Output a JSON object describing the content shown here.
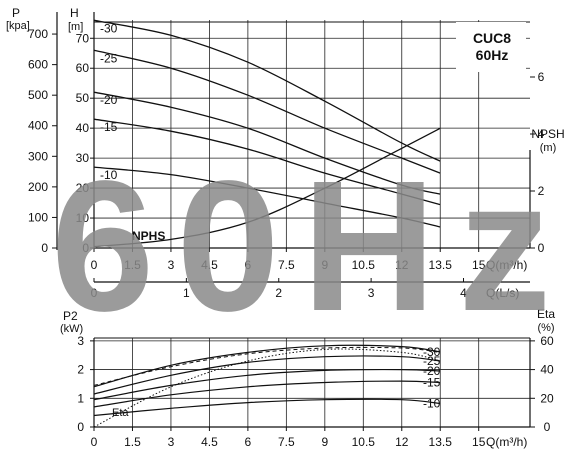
{
  "watermark": "60Hz",
  "model_title": "CUC8",
  "model_freq": "60Hz",
  "chart_data": [
    {
      "type": "line",
      "name": "head-curves",
      "left_axes": [
        {
          "label": "P",
          "unit": "[kpa]",
          "ticks": [
            0,
            100,
            200,
            300,
            400,
            500,
            600,
            700
          ],
          "range": [
            0,
            746
          ]
        },
        {
          "label": "H",
          "unit": "[m]",
          "ticks": [
            0,
            10,
            20,
            30,
            40,
            50,
            60,
            70
          ],
          "range": [
            0,
            76.1
          ]
        }
      ],
      "right_axis": {
        "label": "NPSH",
        "unit": "(m)",
        "ticks": [
          0,
          2,
          4,
          6
        ],
        "range": [
          0,
          8
        ]
      },
      "x_axis_q": {
        "label": "Q(m³/h)",
        "ticks": [
          0,
          1.5,
          3,
          4.5,
          6,
          7.5,
          9,
          10.5,
          12,
          13.5,
          15
        ],
        "range": [
          0,
          17
        ]
      },
      "x_axis_ls": {
        "label": "Q(L/s)",
        "ticks": [
          0,
          1,
          2,
          3,
          4
        ],
        "range": [
          0,
          4.72
        ]
      },
      "series": [
        {
          "name": "-30",
          "x": [
            0,
            3,
            6,
            9,
            12,
            13.5
          ],
          "y": [
            76,
            71,
            62,
            49,
            35,
            29
          ]
        },
        {
          "name": "-25",
          "x": [
            0,
            3,
            6,
            9,
            12,
            13.5
          ],
          "y": [
            66,
            60,
            51,
            40,
            30,
            25
          ]
        },
        {
          "name": "-20",
          "x": [
            0,
            3,
            6,
            9,
            12,
            13.5
          ],
          "y": [
            52,
            47,
            40,
            30,
            21,
            18
          ]
        },
        {
          "name": "-15",
          "x": [
            0,
            3,
            6,
            9,
            12,
            13.5
          ],
          "y": [
            43,
            39,
            33,
            25,
            18,
            14.5
          ]
        },
        {
          "name": "-10",
          "x": [
            0,
            3,
            6,
            9,
            12,
            13.5
          ],
          "y": [
            27,
            24.5,
            20,
            15,
            10,
            7
          ]
        }
      ],
      "npsh": {
        "name": "NPHS",
        "x": [
          0,
          3,
          6,
          9,
          12,
          13.5
        ],
        "y": [
          0.05,
          0.3,
          0.9,
          2.1,
          3.5,
          4.2
        ]
      }
    },
    {
      "type": "line",
      "name": "power-curves",
      "left_axis": {
        "label": "P2",
        "unit": "(kW)",
        "ticks": [
          0,
          1,
          2,
          3
        ],
        "range": [
          0,
          3.1
        ]
      },
      "right_axis": {
        "label": "Eta",
        "unit": "(%)",
        "ticks": [
          0,
          20,
          40,
          60
        ],
        "range": [
          0,
          62
        ]
      },
      "x_axis": {
        "label": "Q(m³/h)",
        "ticks": [
          0,
          1.5,
          3,
          4.5,
          6,
          7.5,
          9,
          10.5,
          12,
          13.5,
          15
        ],
        "range": [
          0,
          17
        ]
      },
      "series": [
        {
          "name": "-30",
          "x": [
            0,
            3,
            6,
            9,
            12,
            13.5
          ],
          "y": [
            1.4,
            2.15,
            2.6,
            2.83,
            2.8,
            2.62
          ]
        },
        {
          "name": "-25",
          "x": [
            0,
            3,
            6,
            9,
            12,
            13.5
          ],
          "y": [
            1.15,
            1.8,
            2.25,
            2.45,
            2.45,
            2.3
          ]
        },
        {
          "name": "-20",
          "x": [
            0,
            3,
            6,
            9,
            12,
            13.5
          ],
          "y": [
            0.95,
            1.45,
            1.8,
            1.97,
            2.0,
            1.95
          ]
        },
        {
          "name": "-15",
          "x": [
            0,
            3,
            6,
            9,
            12,
            13.5
          ],
          "y": [
            0.7,
            1.12,
            1.4,
            1.55,
            1.6,
            1.55
          ]
        },
        {
          "name": "-10",
          "x": [
            0,
            3,
            6,
            9,
            12,
            13.5
          ],
          "y": [
            0.4,
            0.65,
            0.85,
            0.95,
            0.95,
            0.82
          ]
        }
      ],
      "eta": {
        "name": "Eta",
        "x": [
          0,
          3,
          6,
          9,
          12,
          13.5
        ],
        "y": [
          0,
          28,
          46,
          54,
          52,
          46
        ]
      }
    }
  ]
}
